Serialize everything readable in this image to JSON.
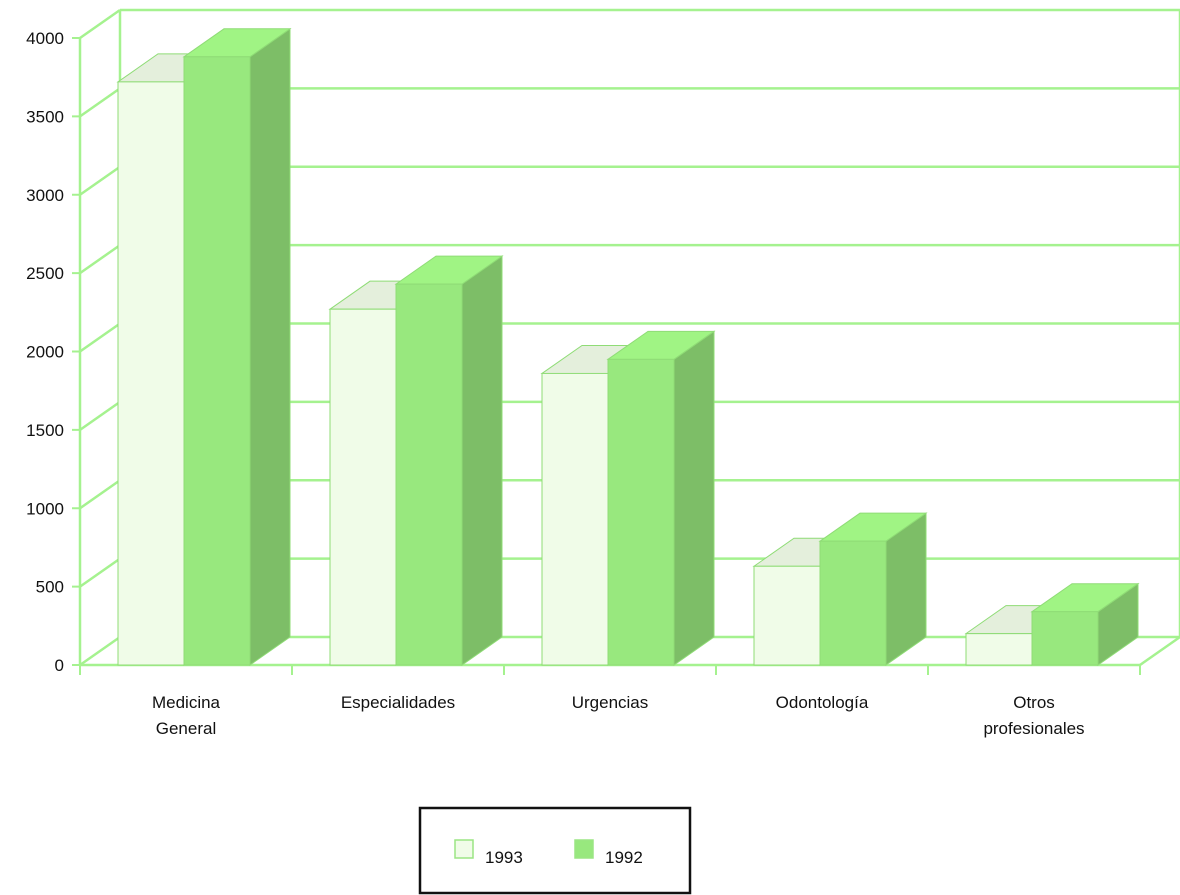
{
  "chart_data": {
    "type": "bar",
    "title": "",
    "xlabel": "",
    "ylabel": "",
    "categories": [
      [
        "Medicina",
        "General"
      ],
      [
        "Especialidades"
      ],
      [
        "Urgencias"
      ],
      [
        "Odontología"
      ],
      [
        "Otros",
        "profesionales"
      ]
    ],
    "series": [
      {
        "name": "1993",
        "values": [
          3720,
          2270,
          1860,
          630,
          200
        ],
        "color": "#f0fce8"
      },
      {
        "name": "1992",
        "values": [
          3880,
          2430,
          1950,
          790,
          340
        ],
        "color": "#98e87e"
      }
    ],
    "ylim": [
      0,
      4000
    ],
    "yticks": [
      0,
      500,
      1000,
      1500,
      2000,
      2500,
      3000,
      3500,
      4000
    ],
    "grid": true,
    "style": "3d",
    "legend_position": "bottom-center",
    "colors": {
      "grid_line": "#a5f28f",
      "axis_line": "#a5f28f",
      "legend_border": "#111111"
    }
  }
}
